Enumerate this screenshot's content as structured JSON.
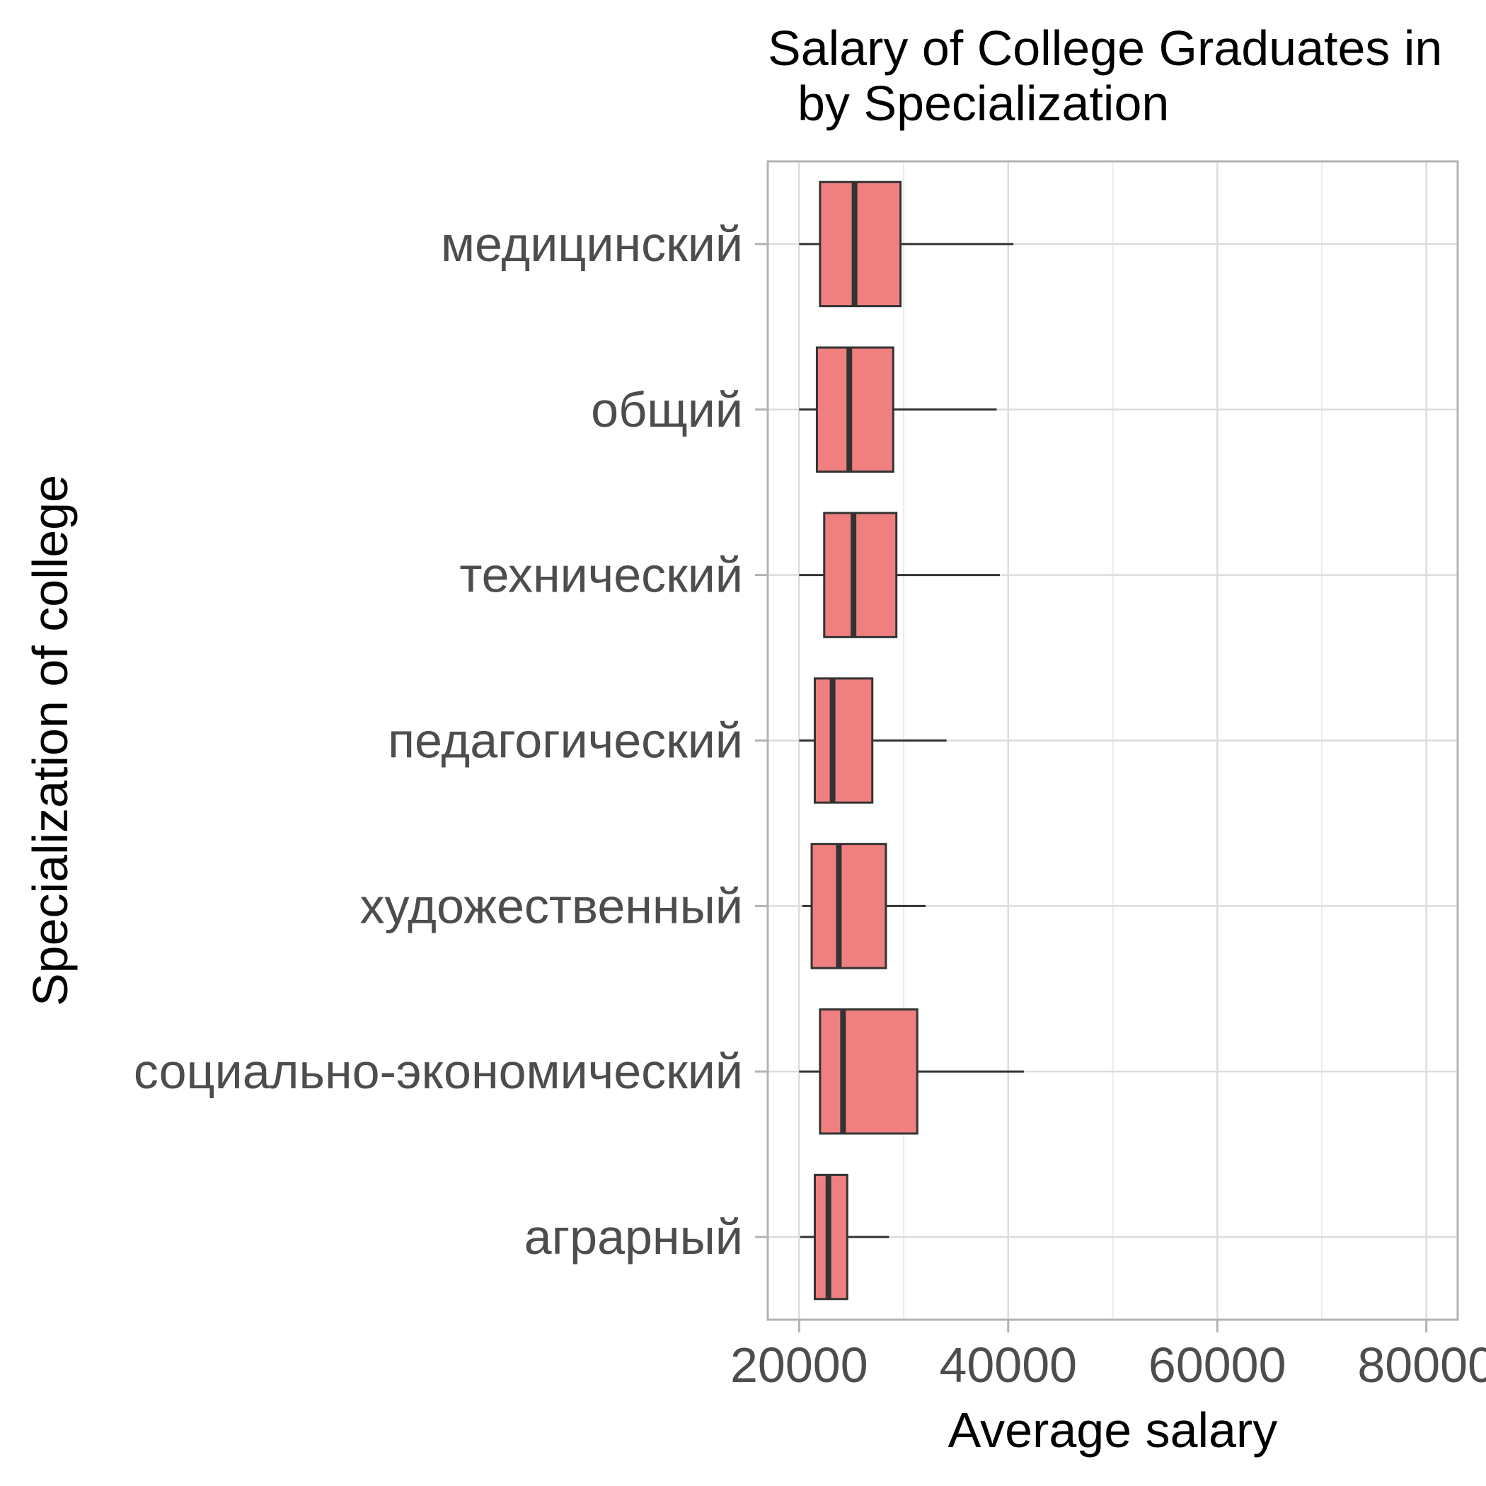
{
  "chart_data": {
    "type": "boxplot",
    "title": "Salary of College Graduates in",
    "subtitle": "by Specialization",
    "xlabel": "Average salary",
    "ylabel": "Specialization of college",
    "xlim": [
      17000,
      83000
    ],
    "x_ticks": [
      20000,
      40000,
      60000,
      80000
    ],
    "x_tick_labels": [
      "20000",
      "40000",
      "60000",
      "80000"
    ],
    "categories": [
      "медицинский",
      "общий",
      "технический",
      "педагогический",
      "художественный",
      "социально-экономический",
      "аграрный"
    ],
    "boxes": [
      {
        "min": 20000,
        "q1": 22000,
        "median": 25300,
        "q3": 29700,
        "max": 40500
      },
      {
        "min": 20000,
        "q1": 21700,
        "median": 24800,
        "q3": 29000,
        "max": 38900
      },
      {
        "min": 20000,
        "q1": 22400,
        "median": 25200,
        "q3": 29300,
        "max": 39200
      },
      {
        "min": 20000,
        "q1": 21500,
        "median": 23200,
        "q3": 27000,
        "max": 34100
      },
      {
        "min": 20300,
        "q1": 21200,
        "median": 23800,
        "q3": 28300,
        "max": 32100
      },
      {
        "min": 20000,
        "q1": 22000,
        "median": 24200,
        "q3": 31300,
        "max": 41500
      },
      {
        "min": 20100,
        "q1": 21500,
        "median": 22800,
        "q3": 24600,
        "max": 28600
      }
    ],
    "box_color": "#f08080",
    "line_color": "#333333",
    "grid": true,
    "panel_border": true,
    "legend": "none"
  }
}
